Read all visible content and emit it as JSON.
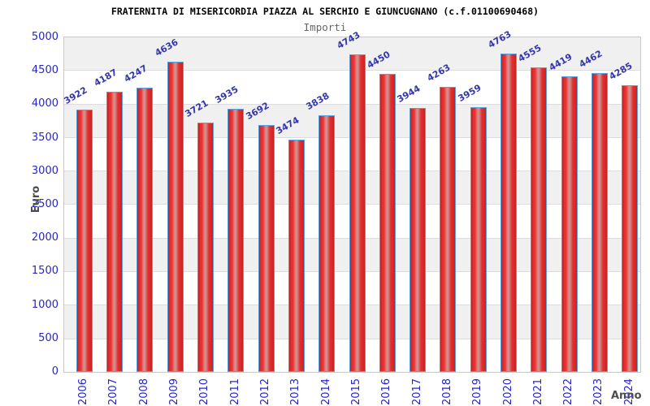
{
  "chart_data": {
    "type": "bar",
    "title": "FRATERNITA DI MISERICORDIA PIAZZA AL SERCHIO E GIUNCUGNANO (c.f.01100690468)",
    "subtitle": "Importi",
    "xlabel": "Anno",
    "ylabel": "Euro",
    "categories": [
      "2006",
      "2007",
      "2008",
      "2009",
      "2010",
      "2011",
      "2012",
      "2013",
      "2014",
      "2015",
      "2016",
      "2017",
      "2018",
      "2019",
      "2020",
      "2021",
      "2022",
      "2023",
      "2024"
    ],
    "values": [
      3922,
      4187,
      4247,
      4636,
      3721,
      3935,
      3692,
      3474,
      3838,
      4743,
      4450,
      3944,
      4263,
      3959,
      4763,
      4555,
      4419,
      4462,
      4285
    ],
    "ylim": [
      0,
      5000
    ],
    "ytick_step": 500,
    "grid": "horizontal gridlines every 500 with alternating gray/white bands",
    "legend": "none",
    "colors": {
      "bar_fill": "#e22a2a",
      "bar_fill_highlight": "#d99090",
      "bar_border": "#55a0dd",
      "tick_label": "#2525cd",
      "value_label": "#3636ab",
      "title": "#000000",
      "subtitle": "#666666",
      "axis_title": "#4d4d4d",
      "band_gray": "#f0f0f0",
      "gridline": "#dcdcdc",
      "plot_border": "#c8c8c8",
      "background": "#ffffff"
    }
  }
}
